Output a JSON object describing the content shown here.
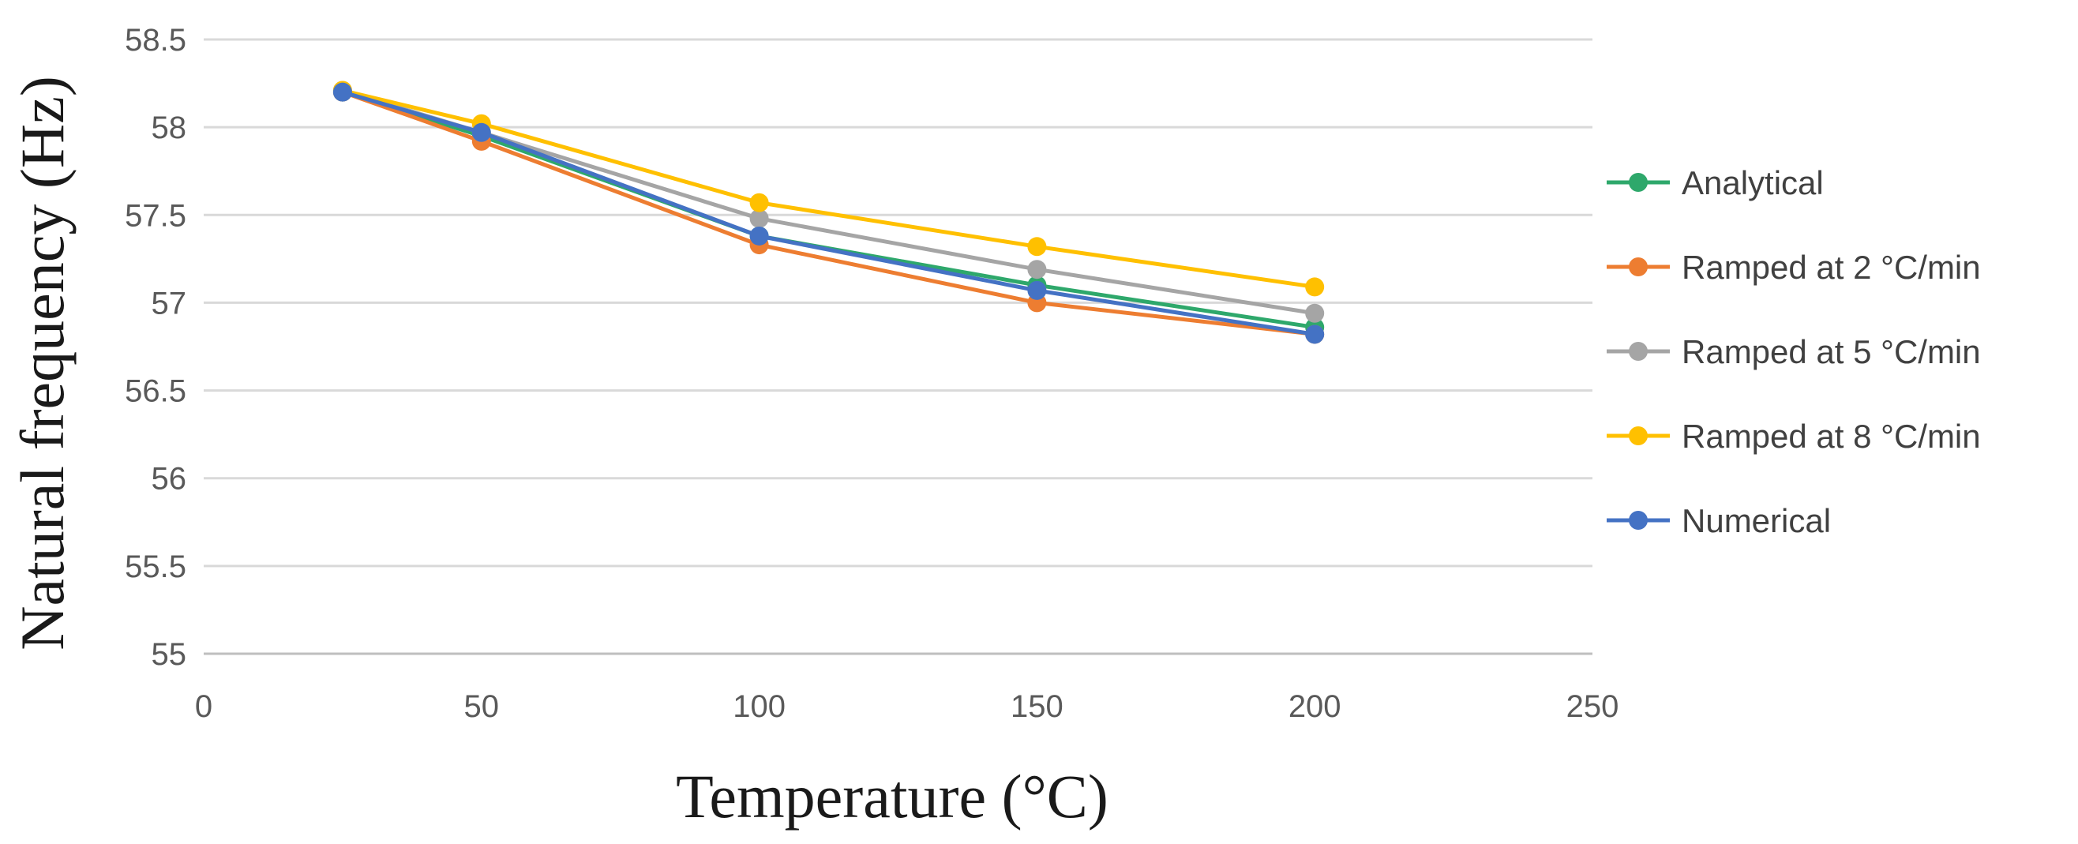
{
  "chart_data": {
    "type": "line",
    "title": "",
    "xlabel": "Temperature (°C)",
    "ylabel": "Natural frequency (Hz)",
    "xlim": [
      0,
      250
    ],
    "ylim": [
      55,
      58.5
    ],
    "x_ticks": [
      0,
      50,
      100,
      150,
      200,
      250
    ],
    "y_ticks": [
      55,
      55.5,
      56,
      56.5,
      57,
      57.5,
      58,
      58.5
    ],
    "x_tick_labels": [
      "0",
      "50",
      "100",
      "150",
      "200",
      "250"
    ],
    "y_tick_labels": [
      "55",
      "55.5",
      "56",
      "56.5",
      "57",
      "57.5",
      "58",
      "58.5"
    ],
    "grid": "horizontal",
    "legend_position": "right",
    "x": [
      25,
      50,
      100,
      150,
      200
    ],
    "series": [
      {
        "name": "Analytical",
        "color": "#2ea86b",
        "values": [
          58.2,
          57.95,
          57.38,
          57.1,
          56.86
        ]
      },
      {
        "name": "Ramped at 2 °C/min",
        "color": "#ed7d31",
        "values": [
          58.2,
          57.92,
          57.33,
          57.0,
          56.82
        ]
      },
      {
        "name": "Ramped at 5 °C/min",
        "color": "#a5a5a5",
        "values": [
          58.21,
          57.97,
          57.48,
          57.19,
          56.94
        ]
      },
      {
        "name": "Ramped at 8 °C/min",
        "color": "#ffc000",
        "values": [
          58.21,
          58.02,
          57.57,
          57.32,
          57.09
        ]
      },
      {
        "name": "Numerical",
        "color": "#4472c4",
        "values": [
          58.2,
          57.97,
          57.38,
          57.07,
          56.82
        ]
      }
    ]
  }
}
